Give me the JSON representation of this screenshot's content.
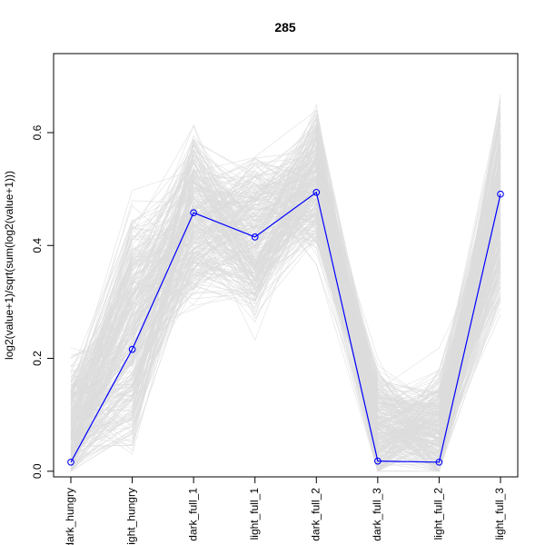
{
  "chart_data": {
    "type": "line",
    "title": "285",
    "ylabel": "log2(value+1)/sqrt(sum(log2(value+1)))",
    "xlabel": "",
    "categories": [
      "dark_hungry",
      "light_hungry",
      "dark_full_1",
      "light_full_1",
      "dark_full_2",
      "dark_full_3",
      "light_full_2",
      "light_full_3"
    ],
    "ylim": [
      -0.01,
      0.74
    ],
    "yticks": [
      0.0,
      0.2,
      0.4,
      0.6
    ],
    "ytick_labels": [
      "0.0",
      "0.2",
      "0.4",
      "0.6"
    ],
    "grid": false,
    "highlight": {
      "values": [
        0.016,
        0.216,
        0.458,
        0.415,
        0.494,
        0.018,
        0.016,
        0.491
      ],
      "color": "#0000ff"
    },
    "background_series": {
      "count": 285,
      "color": "#dcdcdc",
      "ranges": [
        [
          0.0,
          0.33
        ],
        [
          0.0,
          0.62
        ],
        [
          0.22,
          0.66
        ],
        [
          0.19,
          0.63
        ],
        [
          0.33,
          0.72
        ],
        [
          0.0,
          0.32
        ],
        [
          0.0,
          0.32
        ],
        [
          0.17,
          0.72
        ]
      ]
    }
  }
}
